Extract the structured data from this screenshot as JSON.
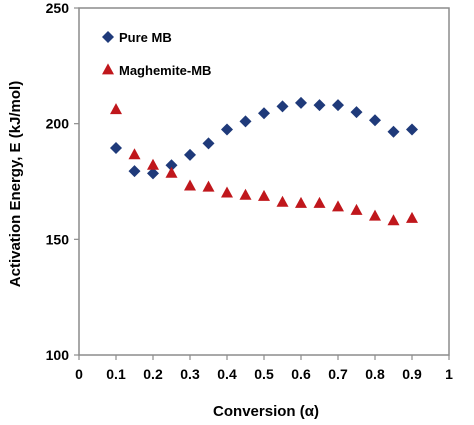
{
  "chart_data": {
    "type": "scatter",
    "xlabel": "Conversion (α)",
    "ylabel": "Activation Energy, E (kJ/mol)",
    "xlim": [
      0,
      1
    ],
    "ylim": [
      100,
      250
    ],
    "x_ticks": [
      "0",
      "0.1",
      "0.2",
      "0.3",
      "0.4",
      "0.5",
      "0.6",
      "0.7",
      "0.8",
      "0.9",
      "1"
    ],
    "y_ticks": [
      "100",
      "150",
      "200",
      "250"
    ],
    "legend_position": "top-left",
    "grid": false,
    "series": [
      {
        "name": "Pure MB",
        "marker": "diamond",
        "color": "#1f3a7a",
        "x": [
          0.1,
          0.15,
          0.2,
          0.25,
          0.3,
          0.35,
          0.4,
          0.45,
          0.5,
          0.55,
          0.6,
          0.65,
          0.7,
          0.75,
          0.8,
          0.85,
          0.9
        ],
        "y": [
          189.5,
          179.5,
          178.5,
          182,
          186.5,
          191.5,
          197.5,
          201,
          204.5,
          207.5,
          209,
          208,
          208,
          205,
          201.5,
          196.5,
          197.5
        ]
      },
      {
        "name": "Maghemite-MB",
        "marker": "triangle",
        "color": "#c0171c",
        "x": [
          0.1,
          0.15,
          0.2,
          0.25,
          0.3,
          0.35,
          0.4,
          0.45,
          0.5,
          0.55,
          0.6,
          0.65,
          0.7,
          0.75,
          0.8,
          0.85,
          0.9
        ],
        "y": [
          206,
          186.5,
          182,
          178.5,
          173,
          172.5,
          170,
          169,
          168.5,
          166,
          165.5,
          165.5,
          164,
          162.5,
          160,
          158,
          159
        ]
      }
    ]
  }
}
